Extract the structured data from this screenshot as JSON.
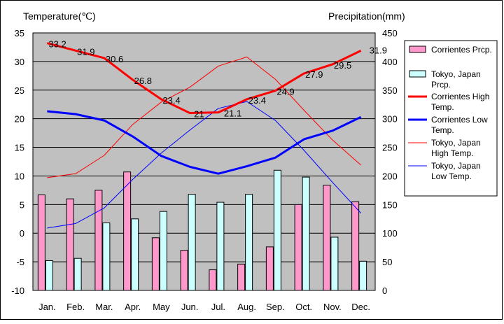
{
  "chart_data": {
    "type": "bar+line",
    "left_axis_label": "Temperature(℃)",
    "right_axis_label": "Precipitation(mm)",
    "categories": [
      "Jan.",
      "Feb.",
      "Mar.",
      "Apr.",
      "May",
      "Jun.",
      "Jul.",
      "Aug.",
      "Sep.",
      "Oct.",
      "Nov.",
      "Dec."
    ],
    "ylim_left": [
      -10,
      35
    ],
    "yticks_left": [
      "35",
      "30",
      "25",
      "20",
      "15",
      "10",
      "5",
      "0",
      "-5",
      "-10"
    ],
    "ylim_right": [
      0,
      450
    ],
    "yticks_right": [
      "450",
      "400",
      "350",
      "300",
      "250",
      "200",
      "150",
      "100",
      "50",
      "0"
    ],
    "grid": "horizontal",
    "legend_position": "right",
    "bar_series": [
      {
        "name": "Corrientes Prcp.",
        "color": "#ff99cc",
        "values": [
          167,
          160,
          175,
          207,
          92,
          70,
          36,
          46,
          76,
          150,
          184,
          155
        ]
      },
      {
        "name": "Tokyo, Japan Prcp.",
        "color": "#ccffff",
        "values": [
          52,
          56,
          118,
          125,
          138,
          168,
          154,
          168,
          210,
          198,
          93,
          51
        ]
      }
    ],
    "line_series": [
      {
        "name": "Corrientes High Temp.",
        "color": "#ff0000",
        "width": 3,
        "values": [
          33.2,
          31.9,
          30.6,
          26.8,
          23.4,
          21.0,
          21.1,
          23.4,
          24.9,
          27.9,
          29.5,
          31.9
        ],
        "labels": [
          "33.2",
          "31.9",
          "30.6",
          "26.8",
          "23.4",
          "21",
          "21.1",
          "23.4",
          "24.9",
          "27.9",
          "29.5",
          "31.9"
        ]
      },
      {
        "name": "Corrientes Low Temp.",
        "color": "#0000ff",
        "width": 3,
        "values": [
          21.3,
          20.8,
          19.7,
          16.9,
          13.5,
          11.6,
          10.4,
          11.7,
          13.2,
          16.4,
          17.9,
          20.3
        ]
      },
      {
        "name": "Tokyo, Japan High Temp.",
        "color": "#ff0000",
        "width": 1,
        "values": [
          9.7,
          10.4,
          13.6,
          19.0,
          22.9,
          25.5,
          29.2,
          30.8,
          26.9,
          21.5,
          16.3,
          11.9
        ]
      },
      {
        "name": "Tokyo, Japan Low Temp.",
        "color": "#0000ff",
        "width": 1,
        "values": [
          0.9,
          1.7,
          4.4,
          9.4,
          14.0,
          18.0,
          21.8,
          23.0,
          19.7,
          14.5,
          8.9,
          3.5
        ]
      }
    ],
    "legend_items": [
      {
        "kind": "bar",
        "color": "#ff99cc",
        "lines": [
          "Corrientes Prcp."
        ]
      },
      {
        "kind": "bar",
        "color": "#ccffff",
        "lines": [
          "Tokyo, Japan",
          "Prcp."
        ]
      },
      {
        "kind": "line",
        "color": "#ff0000",
        "width": 3,
        "lines": [
          "Corrientes High",
          "Temp."
        ]
      },
      {
        "kind": "line",
        "color": "#0000ff",
        "width": 3,
        "lines": [
          "Corrientes Low",
          "Temp."
        ]
      },
      {
        "kind": "line",
        "color": "#ff0000",
        "width": 1,
        "lines": [
          "Tokyo, Japan",
          "High Temp."
        ]
      },
      {
        "kind": "line",
        "color": "#0000ff",
        "width": 1,
        "lines": [
          "Tokyo, Japan",
          "Low Temp."
        ]
      }
    ],
    "colors": {
      "plot_background": "#c0c0c0"
    }
  }
}
